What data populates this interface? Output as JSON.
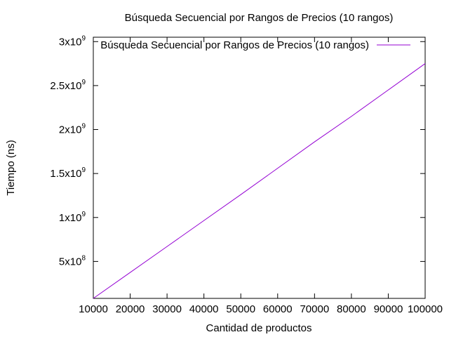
{
  "chart_data": {
    "type": "line",
    "title": "Búsqueda Secuencial por Rangos de Precios (10 rangos)",
    "xlabel": "Cantidad de productos",
    "ylabel": "Tiempo (ns)",
    "xlim": [
      10000,
      100000
    ],
    "ylim": [
      80000000,
      3050000000
    ],
    "x_ticks": [
      10000,
      20000,
      30000,
      40000,
      50000,
      60000,
      70000,
      80000,
      90000,
      100000
    ],
    "x_tick_labels": [
      "10000",
      "20000",
      "30000",
      "40000",
      "50000",
      "60000",
      "70000",
      "80000",
      "90000",
      "100000"
    ],
    "y_ticks": [
      {
        "value": 500000000,
        "mantissa": "5x10",
        "exp": "8"
      },
      {
        "value": 1000000000,
        "mantissa": "1x10",
        "exp": "9"
      },
      {
        "value": 1500000000,
        "mantissa": "1.5x10",
        "exp": "9"
      },
      {
        "value": 2000000000,
        "mantissa": "2x10",
        "exp": "9"
      },
      {
        "value": 2500000000,
        "mantissa": "2.5x10",
        "exp": "9"
      },
      {
        "value": 3000000000,
        "mantissa": "3x10",
        "exp": "9"
      }
    ],
    "legend_position": "top-right",
    "grid": false,
    "series": [
      {
        "name": "Búsqueda Secuencial por Rangos de Precios (10 rangos)",
        "color": "#9400d3",
        "x": [
          10000,
          20000,
          30000,
          40000,
          50000,
          60000,
          70000,
          80000,
          90000,
          100000
        ],
        "y": [
          80000000,
          375000000,
          670000000,
          965000000,
          1260000000,
          1560000000,
          1860000000,
          2150000000,
          2450000000,
          2750000000
        ]
      }
    ]
  }
}
